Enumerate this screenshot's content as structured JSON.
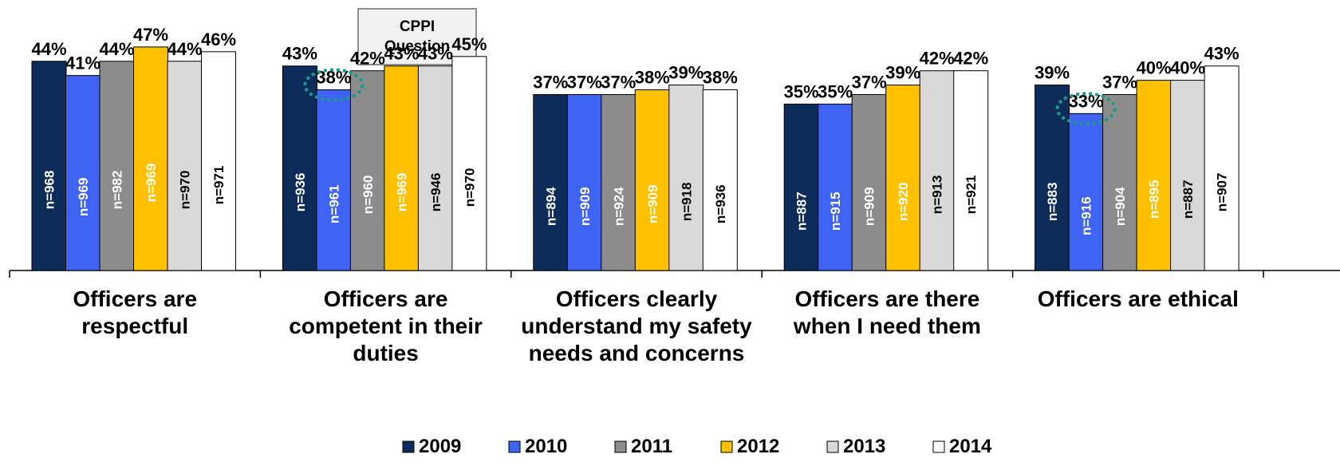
{
  "callout": {
    "text": "CPPI\nQuestion"
  },
  "colors": {
    "2009": "#0d2c5a",
    "2010": "#3f63f2",
    "2011": "#8c8c8c",
    "2012": "#ffc000",
    "2013": "#d9d9d9",
    "2014": "#ffffff",
    "highlight_circle": "#1a9a8c"
  },
  "chart_data": {
    "type": "bar",
    "title": "",
    "xlabel": "",
    "ylabel": "",
    "ylim": [
      0,
      50
    ],
    "grid": false,
    "legend_position": "bottom",
    "categories": [
      [
        "Officers are",
        "respectful"
      ],
      [
        "Officers are",
        "competent in their",
        "duties"
      ],
      [
        "Officers clearly",
        "understand my safety",
        "needs and concerns"
      ],
      [
        "Officers are there",
        "when I need them"
      ],
      [
        "Officers are ethical"
      ]
    ],
    "series": [
      {
        "name": "2009",
        "values": [
          44,
          43,
          37,
          35,
          39
        ],
        "value_labels": [
          "44%",
          "43%",
          "37%",
          "35%",
          "39%"
        ],
        "n_labels": [
          "n=968",
          "n=936",
          "n=894",
          "n=887",
          "n=883"
        ]
      },
      {
        "name": "2010",
        "values": [
          41,
          38,
          37,
          35,
          33
        ],
        "value_labels": [
          "41%",
          "38%",
          "37%",
          "35%",
          "33%"
        ],
        "n_labels": [
          "n=969",
          "n=961",
          "n=909",
          "n=915",
          "n=916"
        ]
      },
      {
        "name": "2011",
        "values": [
          44,
          42,
          37,
          37,
          37
        ],
        "value_labels": [
          "44%",
          "42%",
          "37%",
          "37%",
          "37%"
        ],
        "n_labels": [
          "n=982",
          "n=960",
          "n=924",
          "n=909",
          "n=904"
        ]
      },
      {
        "name": "2012",
        "values": [
          47,
          43,
          38,
          39,
          40
        ],
        "value_labels": [
          "47%",
          "43%",
          "38%",
          "39%",
          "40%"
        ],
        "n_labels": [
          "n=969",
          "n=969",
          "n=909",
          "n=920",
          "n=895"
        ]
      },
      {
        "name": "2013",
        "values": [
          44,
          43,
          39,
          42,
          40
        ],
        "value_labels": [
          "44%",
          "43%",
          "39%",
          "42%",
          "40%"
        ],
        "n_labels": [
          "n=970",
          "n=946",
          "n=918",
          "n=913",
          "n=887"
        ]
      },
      {
        "name": "2014",
        "values": [
          46,
          45,
          38,
          42,
          43
        ],
        "value_labels": [
          "46%",
          "45%",
          "38%",
          "42%",
          "43%"
        ],
        "n_labels": [
          "n=971",
          "n=970",
          "n=936",
          "n=921",
          "n=907"
        ]
      }
    ],
    "highlighted": [
      {
        "category_index": 1,
        "series_index": 1
      },
      {
        "category_index": 4,
        "series_index": 1
      }
    ]
  }
}
